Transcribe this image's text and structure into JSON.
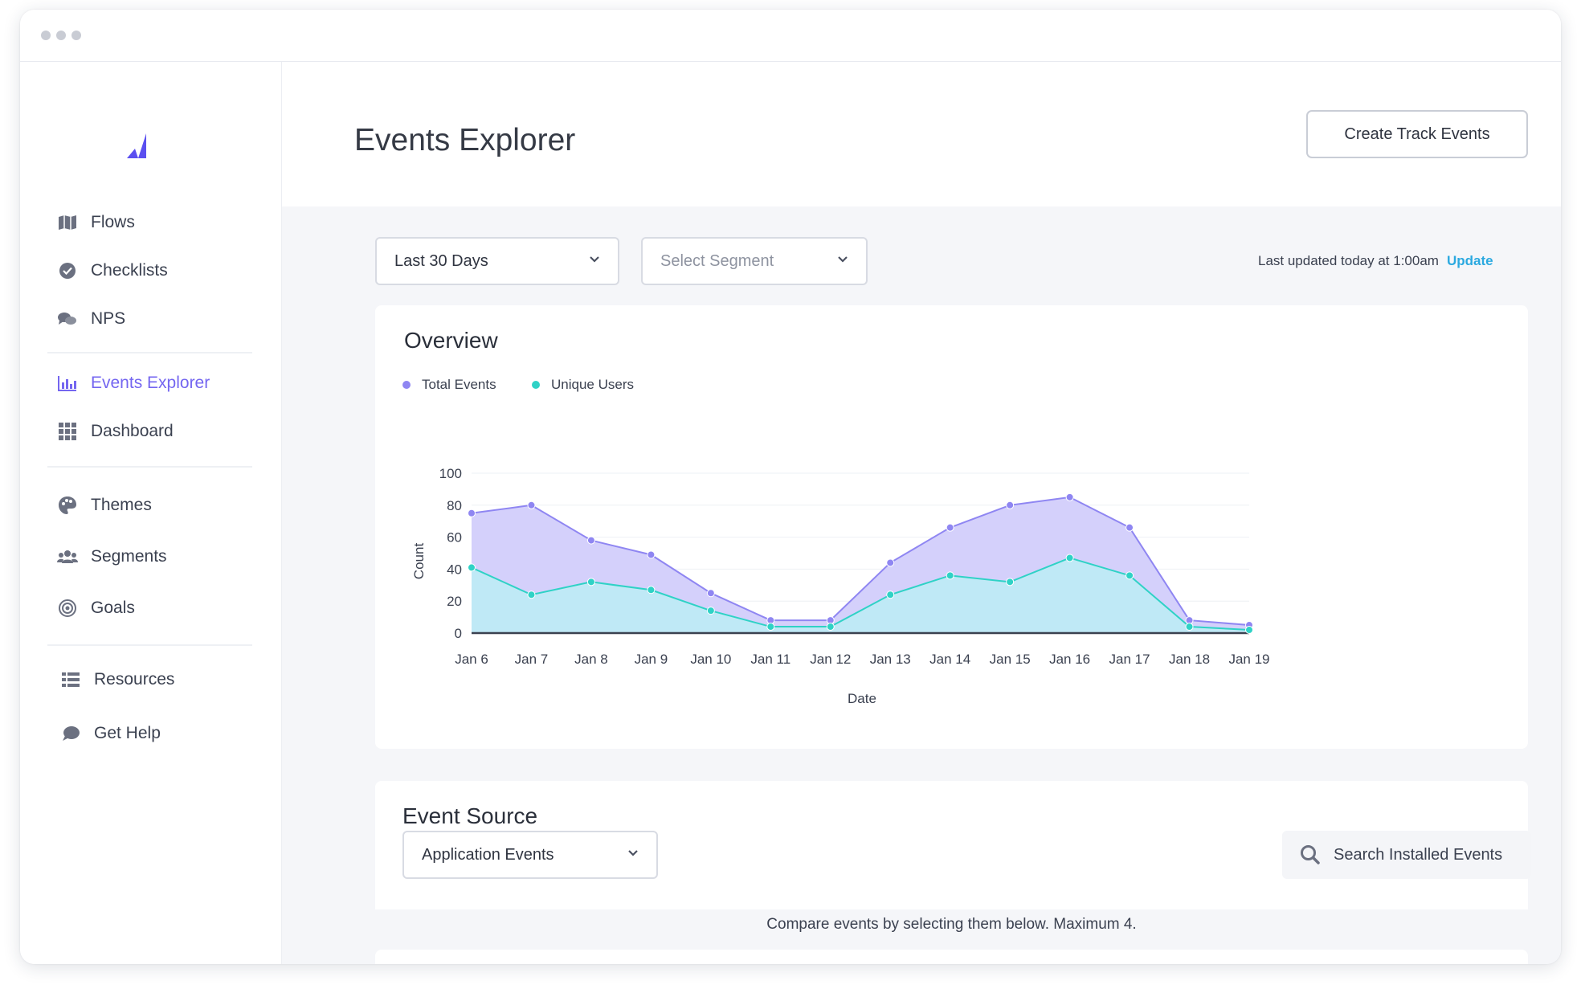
{
  "sidebar": {
    "items": [
      {
        "label": "Flows",
        "icon": "map-icon"
      },
      {
        "label": "Checklists",
        "icon": "check-circle-icon"
      },
      {
        "label": "NPS",
        "icon": "chat-bubbles-icon"
      },
      {
        "label": "Events Explorer",
        "icon": "bar-chart-icon",
        "active": true
      },
      {
        "label": "Dashboard",
        "icon": "grid-icon"
      },
      {
        "label": "Themes",
        "icon": "palette-icon"
      },
      {
        "label": "Segments",
        "icon": "users-icon"
      },
      {
        "label": "Goals",
        "icon": "target-icon"
      },
      {
        "label": "Resources",
        "icon": "list-icon"
      },
      {
        "label": "Get Help",
        "icon": "speech-bubble-icon"
      }
    ]
  },
  "header": {
    "title": "Events Explorer",
    "create_button": "Create Track Events"
  },
  "filters": {
    "date_range": "Last 30 Days",
    "segment_placeholder": "Select Segment",
    "last_updated": "Last updated today at 1:00am",
    "update_link": "Update"
  },
  "overview": {
    "title": "Overview"
  },
  "chart_data": {
    "type": "area",
    "categories": [
      "Jan 6",
      "Jan 7",
      "Jan 8",
      "Jan 9",
      "Jan 10",
      "Jan 11",
      "Jan 12",
      "Jan 13",
      "Jan 14",
      "Jan 15",
      "Jan 16",
      "Jan 17",
      "Jan 18",
      "Jan 19"
    ],
    "series": [
      {
        "name": "Total Events",
        "color": "#8f86f2",
        "values": [
          75,
          80,
          58,
          49,
          25,
          8,
          8,
          44,
          66,
          80,
          85,
          66,
          8,
          5
        ]
      },
      {
        "name": "Unique Users",
        "color": "#2fd2c6",
        "values": [
          41,
          24,
          32,
          27,
          14,
          4,
          4,
          24,
          36,
          32,
          47,
          36,
          4,
          2
        ]
      }
    ],
    "xlabel": "Date",
    "ylabel": "Count",
    "ylim": [
      0,
      100
    ],
    "yticks": [
      0,
      20,
      40,
      60,
      80,
      100
    ],
    "legend": "top-left",
    "grid": true
  },
  "event_source": {
    "title": "Event Source",
    "dropdown_value": "Application Events",
    "search_placeholder": "Search Installed Events",
    "compare_hint": "Compare events by selecting them below. Maximum 4."
  },
  "colors": {
    "accent": "#7466f0",
    "link": "#2ba9e0",
    "total_fill": "#d4d0fb",
    "users_fill": "#bfe9f6"
  }
}
